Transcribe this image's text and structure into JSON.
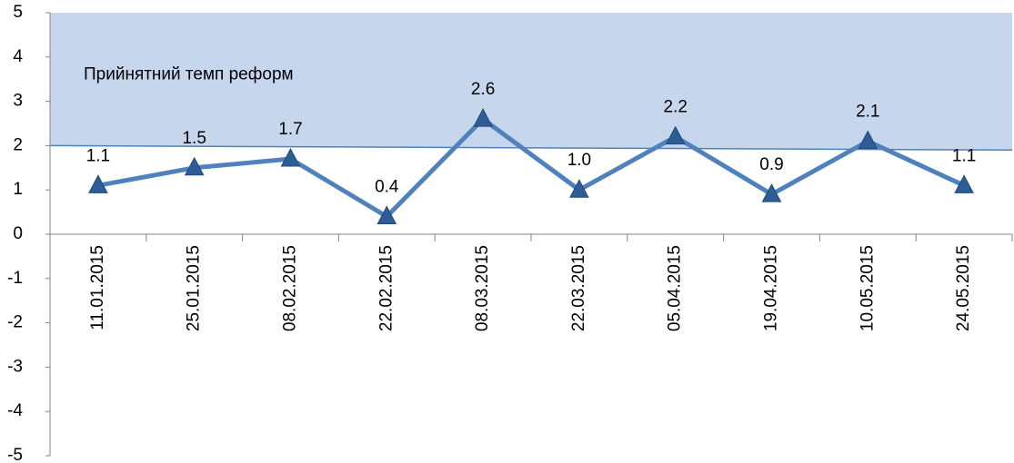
{
  "chart_data": {
    "type": "line",
    "categories": [
      "11.01.2015",
      "25.01.2015",
      "08.02.2015",
      "22.02.2015",
      "08.03.2015",
      "22.03.2015",
      "05.04.2015",
      "19.04.2015",
      "10.05.2015",
      "24.05.2015"
    ],
    "series": [
      {
        "color": "#4f81bd",
        "marker_color": "#2e5d96",
        "values": [
          1.1,
          1.5,
          1.7,
          0.4,
          2.6,
          1.0,
          2.2,
          0.9,
          2.1,
          1.1
        ],
        "value_labels": [
          "1.1",
          "1.5",
          "1.7",
          "0.4",
          "2.6",
          "1.0",
          "2.2",
          "0.9",
          "2.1",
          "1.1"
        ]
      }
    ],
    "ylim": [
      -5,
      5
    ],
    "yticks": [
      -5,
      -4,
      -3,
      -2,
      -1,
      0,
      1,
      2,
      3,
      4,
      5
    ],
    "threshold": {
      "label": "Прийнятний темп реформ",
      "start": 2.0,
      "end": 1.9,
      "color": "#c6d6ec",
      "line_color": "#4f81bd"
    }
  }
}
